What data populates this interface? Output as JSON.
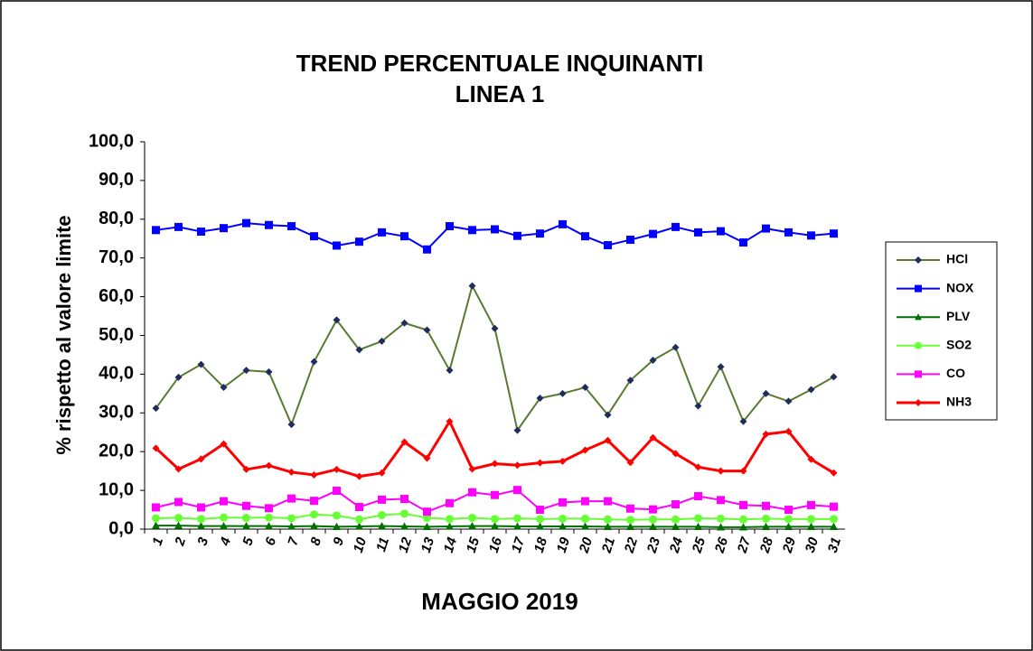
{
  "chart_data": {
    "type": "line",
    "title": "TREND PERCENTUALE INQUINANTI",
    "subtitle": "LINEA 1",
    "x_label": "MAGGIO 2019",
    "y_label": "% rispetto al valore limite",
    "categories": [
      "1",
      "2",
      "3",
      "4",
      "5",
      "6",
      "7",
      "8",
      "9",
      "10",
      "11",
      "12",
      "13",
      "14",
      "15",
      "16",
      "17",
      "18",
      "19",
      "20",
      "21",
      "22",
      "23",
      "24",
      "25",
      "26",
      "27",
      "28",
      "29",
      "30",
      "31"
    ],
    "ylim": [
      0,
      100
    ],
    "yticks": [
      {
        "value": 0,
        "label": "0,0"
      },
      {
        "value": 10,
        "label": "10,0"
      },
      {
        "value": 20,
        "label": "20,0"
      },
      {
        "value": 30,
        "label": "30,0"
      },
      {
        "value": 40,
        "label": "40,0"
      },
      {
        "value": 50,
        "label": "50,0"
      },
      {
        "value": 60,
        "label": "60,0"
      },
      {
        "value": 70,
        "label": "70,0"
      },
      {
        "value": 80,
        "label": "80,0"
      },
      {
        "value": 90,
        "label": "90,0"
      },
      {
        "value": 100,
        "label": "100,0"
      }
    ],
    "grid": false,
    "legend": "right",
    "series": [
      {
        "name": "HCl",
        "color": "#5a7a32",
        "marker": "diamond",
        "marker_color": "#1f2d5c",
        "values": [
          31.2,
          39.2,
          42.5,
          36.6,
          41.0,
          40.6,
          27.0,
          43.2,
          54.0,
          46.3,
          48.5,
          53.2,
          51.4,
          41.0,
          62.8,
          51.8,
          25.5,
          33.8,
          35.0,
          36.6,
          29.5,
          38.4,
          43.6,
          46.9,
          31.8,
          41.9,
          27.8,
          35.0,
          33.0,
          36.0,
          39.3
        ]
      },
      {
        "name": "NOX",
        "color": "#0000ff",
        "marker": "square",
        "values": [
          77.2,
          78.0,
          76.8,
          77.7,
          79.0,
          78.5,
          78.2,
          75.6,
          73.2,
          74.2,
          76.6,
          75.6,
          72.2,
          78.2,
          77.2,
          77.4,
          75.7,
          76.3,
          78.7,
          75.6,
          73.3,
          74.7,
          76.2,
          78.0,
          76.6,
          76.9,
          74.0,
          77.6,
          76.6,
          75.8,
          76.3
        ]
      },
      {
        "name": "PLV",
        "color": "#007000",
        "marker": "triangle",
        "values": [
          0.9,
          0.9,
          0.8,
          0.8,
          0.8,
          0.8,
          0.7,
          0.8,
          0.6,
          0.7,
          0.8,
          0.7,
          0.6,
          0.7,
          0.8,
          0.8,
          0.7,
          0.7,
          0.7,
          0.7,
          0.6,
          0.6,
          0.6,
          0.6,
          0.6,
          0.5,
          0.5,
          0.6,
          0.6,
          0.6,
          0.6
        ]
      },
      {
        "name": "SO2",
        "color": "#66ff33",
        "marker": "circle",
        "values": [
          2.8,
          2.9,
          2.6,
          3.0,
          2.9,
          3.0,
          2.8,
          3.8,
          3.5,
          2.5,
          3.6,
          4.0,
          2.9,
          2.6,
          2.9,
          2.6,
          2.8,
          2.6,
          2.7,
          2.7,
          2.5,
          2.4,
          2.5,
          2.5,
          2.8,
          2.7,
          2.5,
          2.7,
          2.6,
          2.6,
          2.6
        ]
      },
      {
        "name": "CO",
        "color": "#ff00ff",
        "marker": "square",
        "values": [
          5.6,
          7.0,
          5.6,
          7.2,
          6.0,
          5.4,
          7.9,
          7.3,
          9.9,
          5.7,
          7.6,
          7.8,
          4.5,
          6.7,
          9.5,
          8.8,
          10.1,
          5.0,
          6.9,
          7.2,
          7.2,
          5.3,
          5.1,
          6.4,
          8.5,
          7.5,
          6.2,
          6.0,
          5.0,
          6.2,
          5.8
        ]
      },
      {
        "name": "NH3",
        "color": "#ff0000",
        "marker": "diamond",
        "line_width": 3,
        "values": [
          20.9,
          15.5,
          18.1,
          22.0,
          15.4,
          16.4,
          14.7,
          14.0,
          15.4,
          13.6,
          14.5,
          22.5,
          18.3,
          27.8,
          15.5,
          16.9,
          16.5,
          17.1,
          17.5,
          20.4,
          22.9,
          17.2,
          23.6,
          19.5,
          16.0,
          15.0,
          15.0,
          24.5,
          25.2,
          18.0,
          14.5
        ]
      }
    ]
  }
}
